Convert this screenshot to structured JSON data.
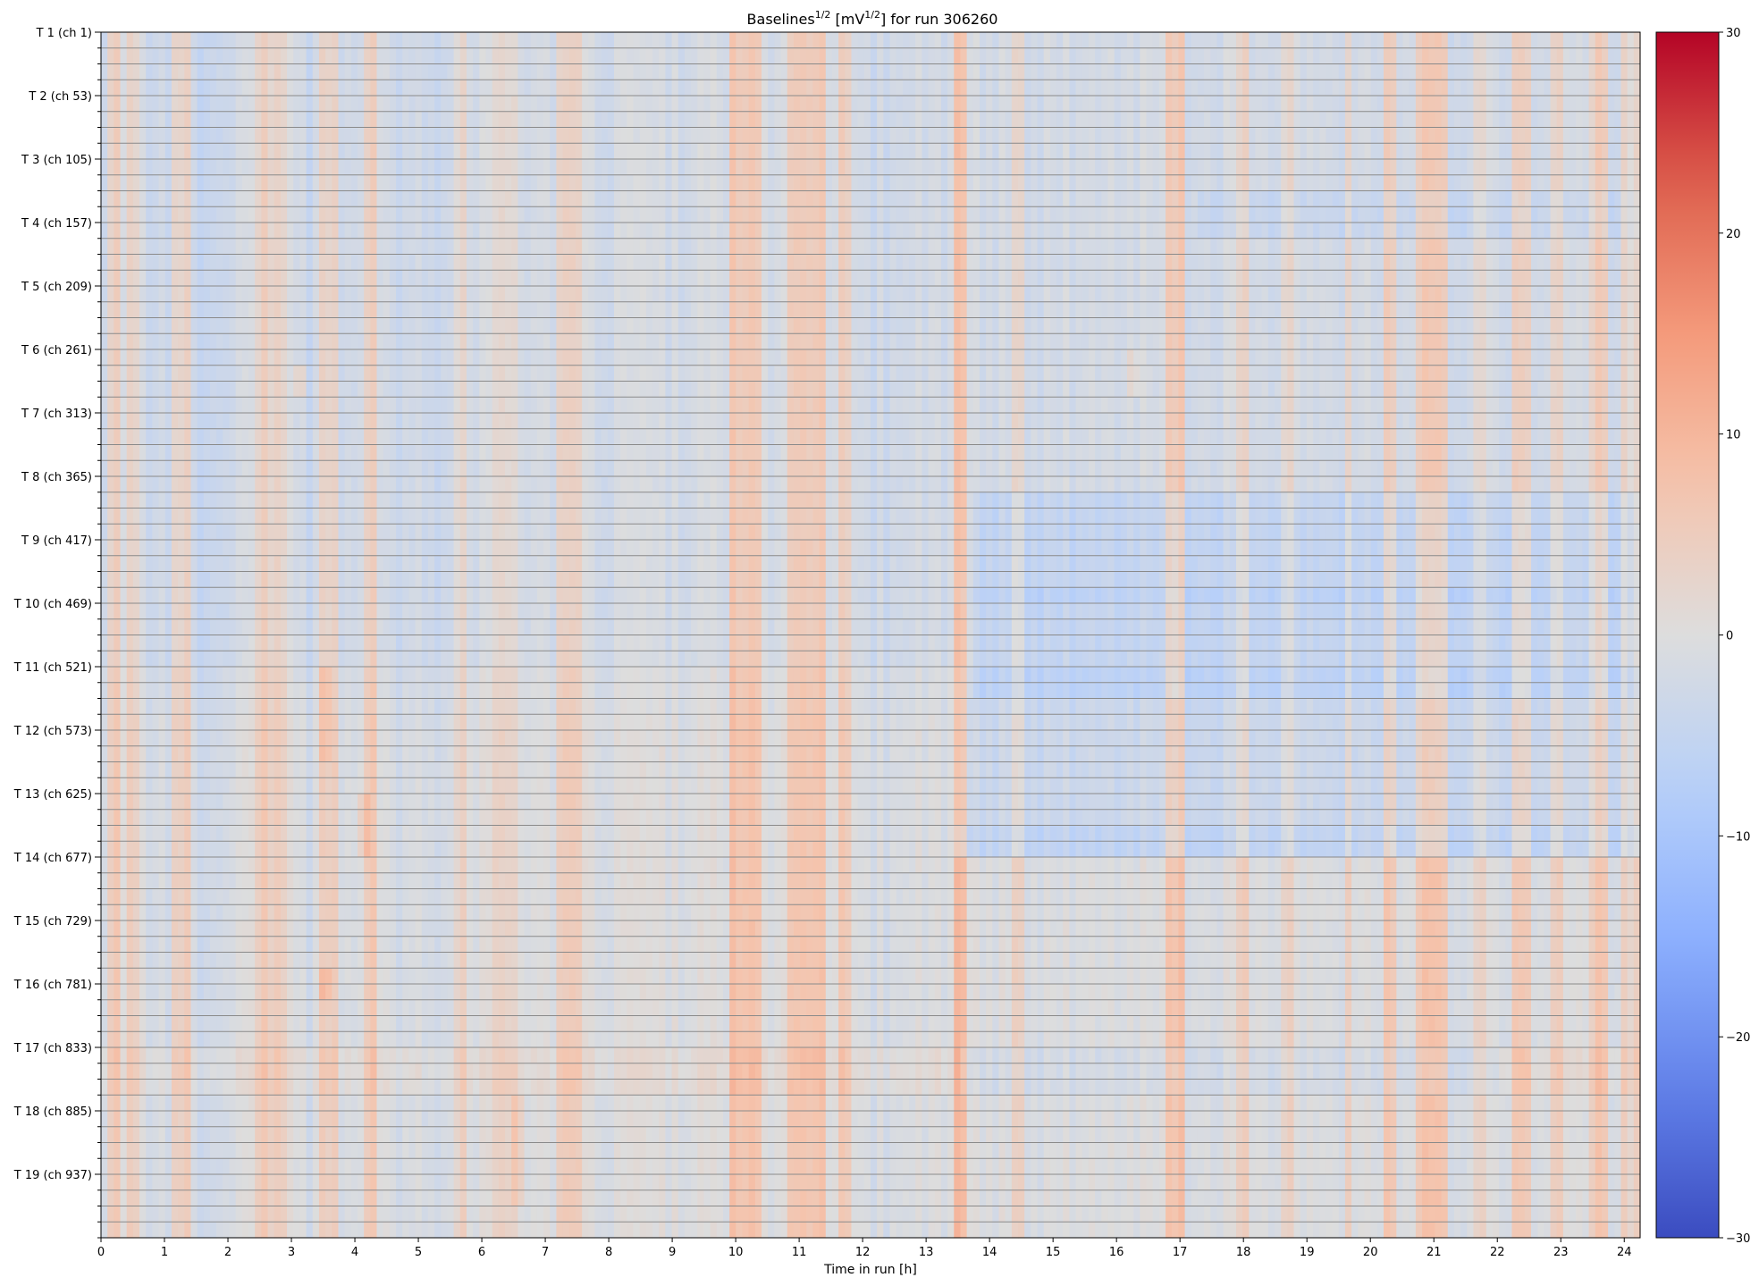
{
  "chart_data": {
    "type": "heatmap",
    "title": {
      "prefix": "Baselines",
      "prefix_sup": "1/2",
      "unit_open": " [mV",
      "unit_sup": "1/2",
      "unit_close": "]",
      "suffix": " for run 306260"
    },
    "xlabel": "Time in run [h]",
    "xlim": [
      0,
      24.25
    ],
    "x_ticks": [
      0,
      1,
      2,
      3,
      4,
      5,
      6,
      7,
      8,
      9,
      10,
      11,
      12,
      13,
      14,
      15,
      16,
      17,
      18,
      19,
      20,
      21,
      22,
      23,
      24
    ],
    "y_tick_labels": [
      "T 1 (ch 1)",
      "T 2 (ch 53)",
      "T 3 (ch 105)",
      "T 4 (ch 157)",
      "T 5 (ch 209)",
      "T 6 (ch 261)",
      "T 7 (ch 313)",
      "T 8 (ch 365)",
      "T 9 (ch 417)",
      "T 10 (ch 469)",
      "T 11 (ch 521)",
      "T 12 (ch 573)",
      "T 13 (ch 625)",
      "T 14 (ch 677)",
      "T 15 (ch 729)",
      "T 16 (ch 781)",
      "T 17 (ch 833)",
      "T 18 (ch 885)",
      "T 19 (ch 937)"
    ],
    "channels_per_label": 52,
    "total_channels": 988,
    "row_lines_every_channels": 13,
    "colorbar": {
      "min": -30,
      "max": 30,
      "ticks": [
        -30,
        -20,
        -10,
        0,
        10,
        20,
        30
      ],
      "colormap": "coolwarm"
    },
    "time_bins": 240,
    "approx_value_range": [
      -8,
      8
    ],
    "value_structure": {
      "column_bands": [
        {
          "x": [
            0.1,
            0.3
          ],
          "v": 4
        },
        {
          "x": [
            0.45,
            0.65
          ],
          "v": 3
        },
        {
          "x": [
            1.15,
            1.45
          ],
          "v": 3
        },
        {
          "x": [
            2.4,
            2.6
          ],
          "v": 4
        },
        {
          "x": [
            2.65,
            2.9
          ],
          "v": 3
        },
        {
          "x": [
            3.4,
            3.7
          ],
          "v": 4
        },
        {
          "x": [
            4.1,
            4.3
          ],
          "v": 4
        },
        {
          "x": [
            5.6,
            5.8
          ],
          "v": 2
        },
        {
          "x": [
            6.15,
            6.55
          ],
          "v": 3
        },
        {
          "x": [
            7.2,
            7.55
          ],
          "v": 4
        },
        {
          "x": [
            9.9,
            10.4
          ],
          "v": 6
        },
        {
          "x": [
            10.8,
            11.4
          ],
          "v": 6
        },
        {
          "x": [
            11.65,
            11.85
          ],
          "v": 4
        },
        {
          "x": [
            13.4,
            13.6
          ],
          "v": 7
        },
        {
          "x": [
            14.35,
            14.55
          ],
          "v": 2
        },
        {
          "x": [
            16.75,
            17.05
          ],
          "v": 6
        },
        {
          "x": [
            17.9,
            18.05
          ],
          "v": 3
        },
        {
          "x": [
            18.55,
            18.8
          ],
          "v": 3
        },
        {
          "x": [
            19.6,
            19.75
          ],
          "v": 3
        },
        {
          "x": [
            20.2,
            20.4
          ],
          "v": 5
        },
        {
          "x": [
            20.75,
            21.2
          ],
          "v": 6
        },
        {
          "x": [
            21.65,
            21.8
          ],
          "v": 3
        },
        {
          "x": [
            22.2,
            22.5
          ],
          "v": 5
        },
        {
          "x": [
            22.85,
            23.05
          ],
          "v": 3
        },
        {
          "x": [
            23.4,
            23.5
          ],
          "v": 3
        },
        {
          "x": [
            23.55,
            23.7
          ],
          "v": 5
        },
        {
          "x": [
            23.9,
            24.25
          ],
          "v": 2
        },
        {
          "x": [
            0.75,
            1.1
          ],
          "v": -3
        },
        {
          "x": [
            1.5,
            1.9
          ],
          "v": -4
        },
        {
          "x": [
            3.2,
            3.35
          ],
          "v": -4
        },
        {
          "x": [
            4.6,
            5.4
          ],
          "v": -3
        },
        {
          "x": [
            7.9,
            8.8
          ],
          "v": -2
        },
        {
          "x": [
            12.1,
            12.4
          ],
          "v": -3
        },
        {
          "x": [
            15.2,
            15.9
          ],
          "v": -2
        },
        {
          "x": [
            18.2,
            18.5
          ],
          "v": -3
        },
        {
          "x": [
            19.1,
            19.4
          ],
          "v": -3
        },
        {
          "x": [
            21.3,
            21.55
          ],
          "v": -2
        }
      ],
      "row_shifts": [
        {
          "ch": [
            561,
            988
          ],
          "v": 1.5
        },
        {
          "ch": [
            832,
            866
          ],
          "v": 1.5
        },
        {
          "ch": [
            520,
            560
          ],
          "v": 1
        }
      ],
      "regions": [
        {
          "x": [
            13.7,
            24.25
          ],
          "ch": [
            374,
            546
          ],
          "v": -3
        },
        {
          "x": [
            13.4,
            24.25
          ],
          "ch": [
            450,
            466
          ],
          "v": -1.5
        },
        {
          "x": [
            13.4,
            24.25
          ],
          "ch": [
            520,
            546
          ],
          "v": -2.5
        },
        {
          "x": [
            13.4,
            24.25
          ],
          "ch": [
            546,
            675
          ],
          "v": -3
        },
        {
          "x": [
            13.4,
            24.25
          ],
          "ch": [
            656,
            675
          ],
          "v": -2
        },
        {
          "x": [
            17.3,
            24.25
          ],
          "ch": [
            130,
            168
          ],
          "v": -2
        },
        {
          "x": [
            13.5,
            22.0
          ],
          "ch": [
            832,
            866
          ],
          "v": -3
        },
        {
          "x": [
            3.45,
            3.65
          ],
          "ch": [
            520,
            600
          ],
          "v": 3
        },
        {
          "x": [
            3.45,
            3.65
          ],
          "ch": [
            770,
            790
          ],
          "v": 4
        },
        {
          "x": [
            4.05,
            4.25
          ],
          "ch": [
            620,
            680
          ],
          "v": 4
        },
        {
          "x": [
            6.45,
            6.7
          ],
          "ch": [
            866,
            960
          ],
          "v": 4
        },
        {
          "x": [
            3.0,
            3.2
          ],
          "ch": [
            270,
            300
          ],
          "v": 4
        },
        {
          "x": [
            16.2,
            16.4
          ],
          "ch": [
            260,
            300
          ],
          "v": 3
        }
      ],
      "noise_amplitude": 1.5
    }
  }
}
